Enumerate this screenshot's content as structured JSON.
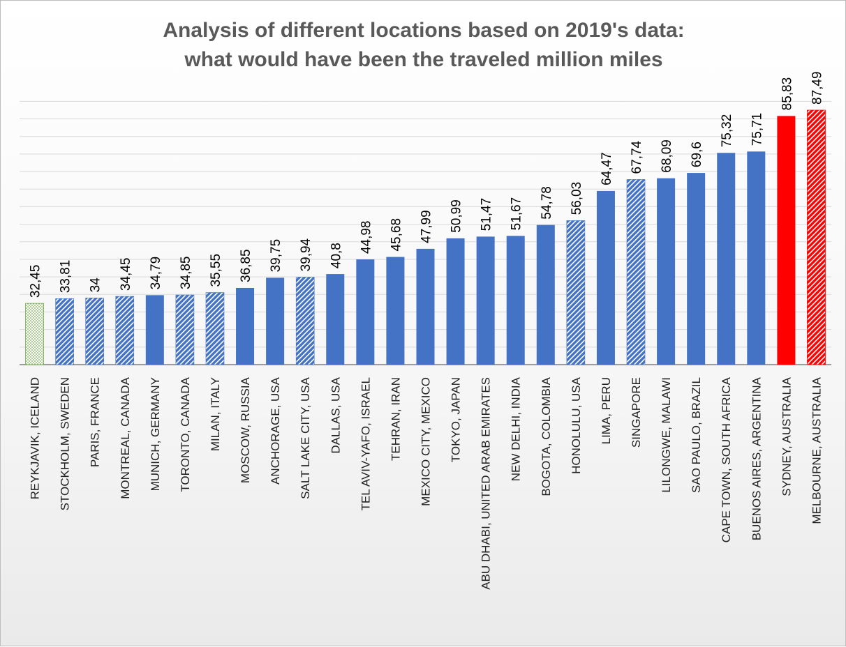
{
  "chart_data": {
    "type": "bar",
    "title_line1": "Analysis of different locations based on 2019's data:",
    "title_line2": "what would have been the traveled million miles",
    "categories": [
      "REYKJAVIK, ICELAND",
      "STOCKHOLM, SWEDEN",
      "PARIS, FRANCE",
      "MONTREAL, CANADA",
      "MUNICH, GERMANY",
      "TORONTO, CANADA",
      "MILAN, ITALY",
      "MOSCOW, RUSSIA",
      "ANCHORAGE, USA",
      "SALT LAKE CITY, USA",
      "DALLAS, USA",
      "TEL AVIV-YAFO, ISRAEL",
      "TEHRAN, IRAN",
      "MEXICO CITY, MEXICO",
      "TOKYO, JAPAN",
      "ABU DHABI, UNITED ARAB EMIRATES",
      "NEW DELHI, INDIA",
      "BOGOTA, COLOMBIA",
      "HONOLULU, USA",
      "LIMA, PERU",
      "SINGAPORE",
      "LILONGWE, MALAWI",
      "SAO PAULO, BRAZIL",
      "CAPE TOWN, SOUTH AFRICA",
      "BUENOS AIRES, ARGENTINA",
      "SYDNEY, AUSTRALIA",
      "MELBOURNE, AUSTRALIA"
    ],
    "values": [
      32.45,
      33.81,
      34,
      34.45,
      34.79,
      34.85,
      35.55,
      36.85,
      39.75,
      39.94,
      40.8,
      44.98,
      45.68,
      47.99,
      50.99,
      51.47,
      51.67,
      54.78,
      56.03,
      64.47,
      67.74,
      68.09,
      69.6,
      75.32,
      75.71,
      85.83,
      87.49
    ],
    "value_labels": [
      "32,45",
      "33,81",
      "34",
      "34,45",
      "34,79",
      "34,85",
      "35,55",
      "36,85",
      "39,75",
      "39,94",
      "40,8",
      "44,98",
      "45,68",
      "47,99",
      "50,99",
      "51,47",
      "51,67",
      "54,78",
      "56,03",
      "64,47",
      "67,74",
      "68,09",
      "69,6",
      "75,32",
      "75,71",
      "85,83",
      "87,49"
    ],
    "bar_styles": [
      "green-dotted",
      "blue-hatch",
      "blue-hatch",
      "blue-hatch",
      "blue",
      "blue-hatch",
      "blue-hatch",
      "blue",
      "blue",
      "blue-hatch",
      "blue",
      "blue",
      "blue",
      "blue",
      "blue",
      "blue",
      "blue",
      "blue",
      "blue-hatch",
      "blue",
      "blue-hatch",
      "blue",
      "blue",
      "blue",
      "blue",
      "red",
      "red-hatch"
    ],
    "colors": {
      "blue": "#4472c4",
      "red": "#ff0000",
      "green": "#70ad47",
      "grid": "#d9d9d9",
      "axis": "#7f7f7f"
    },
    "ylim": [
      15,
      100
    ],
    "grid_step": 5,
    "grid": true,
    "legend": "none",
    "xlabel": "",
    "ylabel": ""
  }
}
